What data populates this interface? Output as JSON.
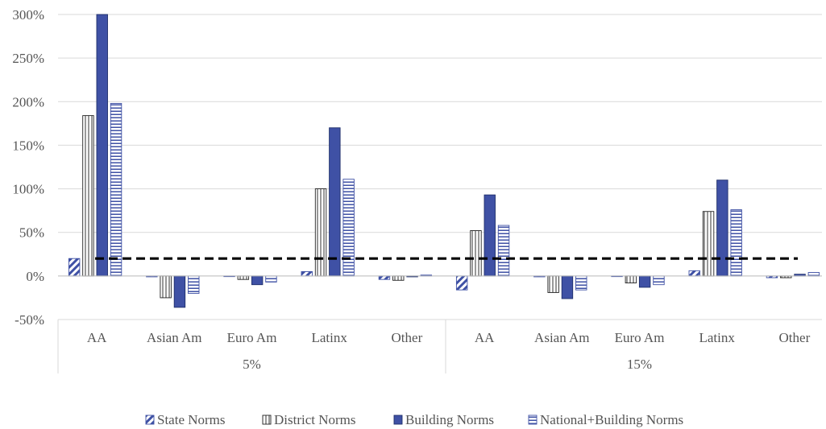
{
  "chart_data": {
    "type": "bar",
    "title": "",
    "xlabel": "",
    "ylabel": "",
    "ylim": [
      -50,
      300
    ],
    "ytick_values": [
      -50,
      0,
      50,
      100,
      150,
      200,
      250,
      300
    ],
    "ytick_labels": [
      "-50%",
      "0%",
      "50%",
      "100%",
      "150%",
      "200%",
      "250%",
      "300%"
    ],
    "grid": true,
    "legend_position": "bottom",
    "reference_line": {
      "value": 20,
      "style": "dashed",
      "color": "#000000"
    },
    "groups": [
      {
        "label": "5%",
        "categories": [
          "AA",
          "Asian Am",
          "Euro Am",
          "Latinx",
          "Other"
        ]
      },
      {
        "label": "15%",
        "categories": [
          "AA",
          "Asian Am",
          "Euro Am",
          "Latinx",
          "Other"
        ]
      }
    ],
    "series": [
      {
        "name": "State Norms",
        "pattern": "diagonal",
        "color": "#3f51a5",
        "values": [
          20,
          -1,
          0,
          5,
          -4,
          -16,
          -1,
          0,
          6,
          -2
        ]
      },
      {
        "name": "District Norms",
        "pattern": "vertical",
        "color": "#3f51a5",
        "values": [
          184,
          -25,
          -4,
          100,
          -5,
          52,
          -19,
          -8,
          74,
          -2
        ]
      },
      {
        "name": "Building Norms",
        "pattern": "solid",
        "color": "#3f51a5",
        "values": [
          300,
          -36,
          -10,
          170,
          -1,
          93,
          -26,
          -13,
          110,
          2
        ]
      },
      {
        "name": "National+Building Norms",
        "pattern": "horizontal",
        "color": "#3f51a5",
        "values": [
          198,
          -20,
          -7,
          111,
          1,
          58,
          -16,
          -10,
          76,
          4
        ]
      }
    ]
  }
}
